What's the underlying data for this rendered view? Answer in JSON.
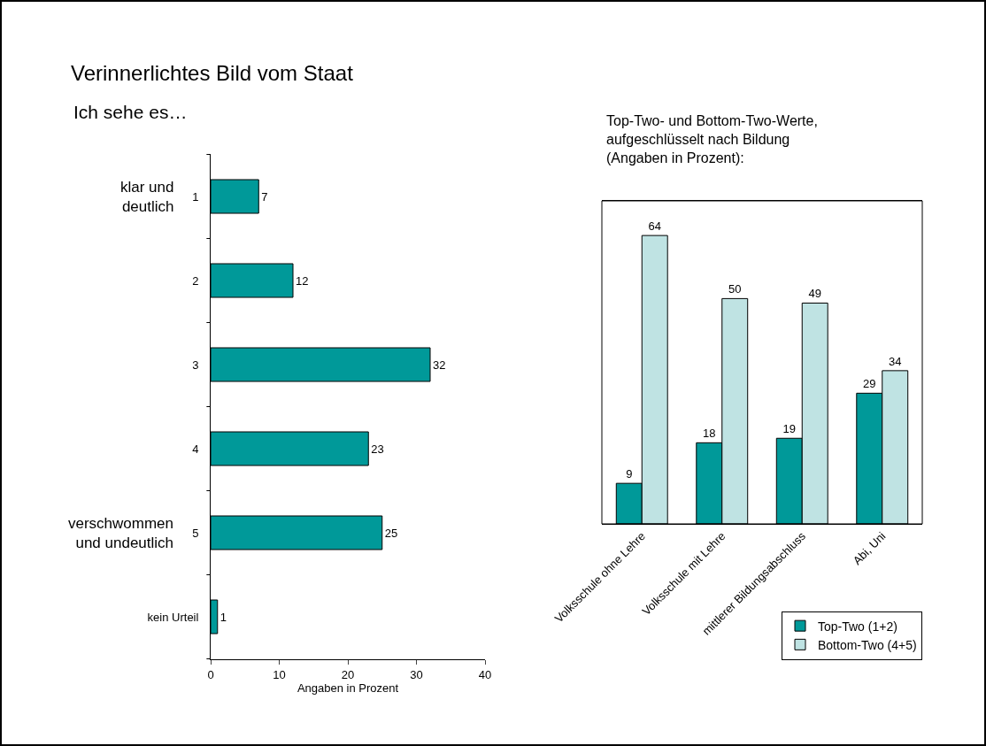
{
  "chart_data": [
    {
      "type": "bar",
      "title": "Verinnerlichtes Bild vom Staat",
      "subtitle": "Ich sehe es…",
      "orientation": "horizontal",
      "categories": [
        "1",
        "2",
        "3",
        "4",
        "5",
        "kein Urteil"
      ],
      "values": [
        7,
        12,
        32,
        23,
        25,
        1
      ],
      "color": "#009999",
      "xlim": [
        0,
        40
      ],
      "xticks": [
        0,
        10,
        20,
        30,
        40
      ],
      "xlabel": "Angaben in Prozent",
      "data_labels": true,
      "grid": false,
      "legend": false,
      "annotations": [
        "klar und deutlich",
        "verschwommen und undeutlich"
      ]
    },
    {
      "type": "bar",
      "title": "Top-Two- und Bottom-Two-Werte, aufgeschlüsselt nach Bildung (Angaben in Prozent):",
      "categories": [
        "Volksschule ohne Lehre",
        "Volksschule mit Lehre",
        "mittlerer Bildungsabschluss",
        "Abi, Uni"
      ],
      "data_labels": true,
      "grid": false,
      "legend": "bottom right",
      "tick_labels": "x",
      "series": [
        {
          "name": "Top-Two (1+2)",
          "color": "#009999",
          "values": [
            9,
            18,
            19,
            29
          ]
        },
        {
          "name": "Bottom-Two (4+5)",
          "color": "#bfe3e3",
          "values": [
            64,
            50,
            49,
            34
          ]
        }
      ]
    }
  ]
}
